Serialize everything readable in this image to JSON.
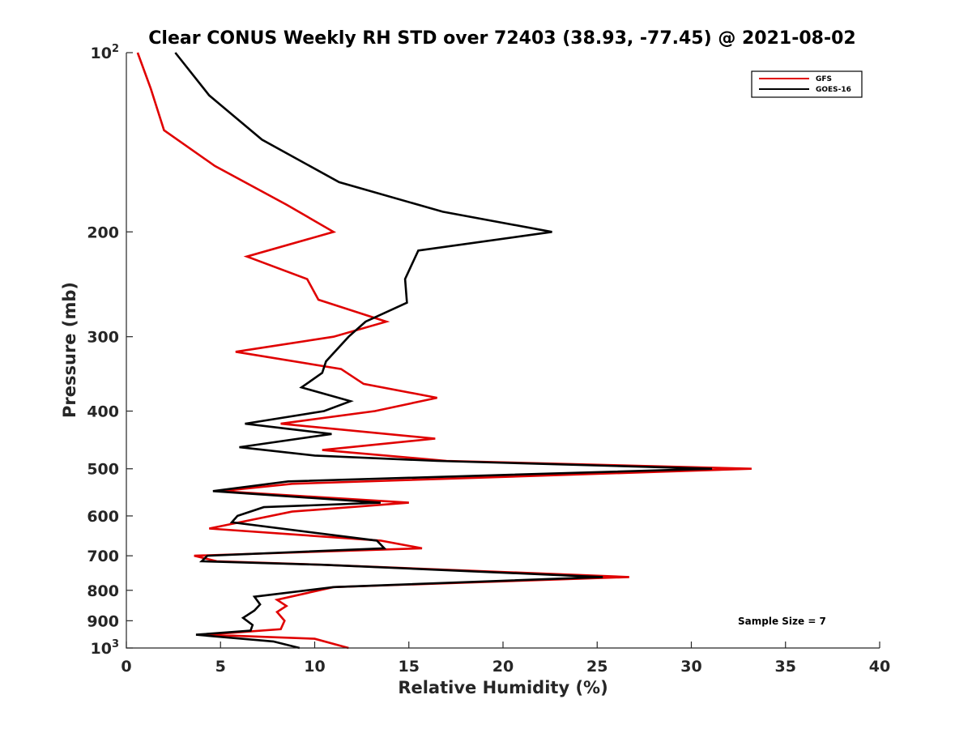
{
  "chart_data": {
    "type": "line",
    "title": "Clear CONUS Weekly RH STD over 72403 (38.93, -77.45) @ 2021-08-02",
    "xlabel": "Relative Humidity (%)",
    "ylabel": "Pressure (mb)",
    "xlim": [
      0,
      40
    ],
    "ylim": [
      100,
      1000
    ],
    "y_scale": "log",
    "y_reversed": true,
    "grid": false,
    "legend_position": "top-right",
    "x_ticks": [
      0,
      5,
      10,
      15,
      20,
      25,
      30,
      35,
      40
    ],
    "x_tick_labels": [
      "0",
      "5",
      "10",
      "15",
      "20",
      "25",
      "30",
      "35",
      "40"
    ],
    "y_ticks": [
      100,
      200,
      300,
      400,
      500,
      600,
      700,
      800,
      900,
      1000
    ],
    "y_tick_labels": [
      {
        "base": "10",
        "exp": "2"
      },
      {
        "base": "200",
        "exp": ""
      },
      {
        "base": "300",
        "exp": ""
      },
      {
        "base": "400",
        "exp": ""
      },
      {
        "base": "500",
        "exp": ""
      },
      {
        "base": "600",
        "exp": ""
      },
      {
        "base": "700",
        "exp": ""
      },
      {
        "base": "800",
        "exp": ""
      },
      {
        "base": "900",
        "exp": ""
      },
      {
        "base": "10",
        "exp": "3"
      }
    ],
    "annotation": "Sample Size = 7",
    "series": [
      {
        "name": "GFS",
        "color": "#e00000",
        "points": [
          [
            0.6,
            100
          ],
          [
            1.3,
            115
          ],
          [
            2.0,
            135
          ],
          [
            4.7,
            155
          ],
          [
            8.5,
            180
          ],
          [
            11.0,
            200
          ],
          [
            6.4,
            220
          ],
          [
            9.6,
            240
          ],
          [
            10.2,
            260
          ],
          [
            13.8,
            283
          ],
          [
            11.0,
            300
          ],
          [
            5.8,
            318
          ],
          [
            11.4,
            340
          ],
          [
            12.6,
            360
          ],
          [
            16.5,
            380
          ],
          [
            13.2,
            400
          ],
          [
            8.2,
            420
          ],
          [
            16.4,
            445
          ],
          [
            10.4,
            465
          ],
          [
            17.0,
            485
          ],
          [
            33.2,
            500
          ],
          [
            8.8,
            530
          ],
          [
            5.0,
            545
          ],
          [
            15.0,
            570
          ],
          [
            8.8,
            590
          ],
          [
            4.4,
            630
          ],
          [
            13.5,
            660
          ],
          [
            15.7,
            680
          ],
          [
            3.6,
            700
          ],
          [
            4.8,
            715
          ],
          [
            10.5,
            725
          ],
          [
            26.7,
            760
          ],
          [
            11.0,
            790
          ],
          [
            8.0,
            830
          ],
          [
            8.5,
            850
          ],
          [
            8.0,
            870
          ],
          [
            8.4,
            900
          ],
          [
            8.2,
            930
          ],
          [
            4.2,
            950
          ],
          [
            10.0,
            965
          ],
          [
            11.8,
            1000
          ]
        ]
      },
      {
        "name": "GOES-16",
        "color": "#000000",
        "points": [
          [
            2.6,
            100
          ],
          [
            4.4,
            118
          ],
          [
            7.2,
            140
          ],
          [
            11.3,
            165
          ],
          [
            16.8,
            185
          ],
          [
            22.6,
            200
          ],
          [
            15.5,
            215
          ],
          [
            14.8,
            240
          ],
          [
            14.9,
            263
          ],
          [
            12.7,
            283
          ],
          [
            11.8,
            300
          ],
          [
            10.6,
            330
          ],
          [
            10.4,
            345
          ],
          [
            9.3,
            365
          ],
          [
            11.9,
            385
          ],
          [
            10.5,
            400
          ],
          [
            6.3,
            420
          ],
          [
            10.9,
            437
          ],
          [
            6.0,
            460
          ],
          [
            10.0,
            475
          ],
          [
            16.5,
            485
          ],
          [
            31.1,
            500
          ],
          [
            8.6,
            525
          ],
          [
            4.6,
            545
          ],
          [
            13.5,
            570
          ],
          [
            7.3,
            580
          ],
          [
            5.9,
            600
          ],
          [
            5.6,
            615
          ],
          [
            13.3,
            660
          ],
          [
            13.7,
            680
          ],
          [
            4.3,
            700
          ],
          [
            4.0,
            715
          ],
          [
            10.5,
            725
          ],
          [
            25.3,
            760
          ],
          [
            11.0,
            790
          ],
          [
            6.8,
            820
          ],
          [
            7.1,
            845
          ],
          [
            6.8,
            865
          ],
          [
            6.2,
            890
          ],
          [
            6.7,
            915
          ],
          [
            6.6,
            935
          ],
          [
            3.7,
            950
          ],
          [
            7.8,
            975
          ],
          [
            9.2,
            1000
          ]
        ]
      }
    ]
  }
}
